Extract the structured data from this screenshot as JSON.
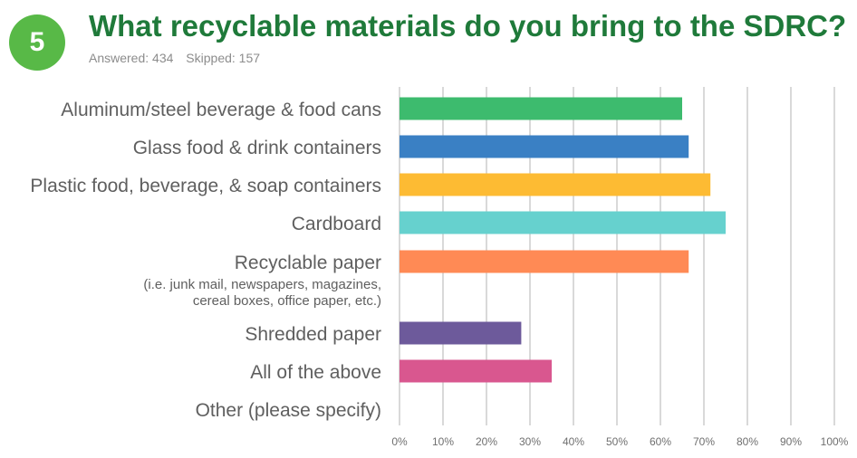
{
  "badge": "5",
  "title": "What recyclable materials do you bring to the SDRC?",
  "answered": "Answered: 434",
  "skipped": "Skipped: 157",
  "colors": {
    "title": "#1f7a3a",
    "badge": "#58b947",
    "grid": "#d9d9d9"
  },
  "chart_data": {
    "type": "bar",
    "orientation": "horizontal",
    "categories": [
      [
        "Aluminum/steel beverage & food cans"
      ],
      [
        "Glass food & drink containers"
      ],
      [
        "Plastic food, beverage, & soap containers"
      ],
      [
        "Cardboard"
      ],
      [
        "Recyclable paper",
        "(i.e. junk mail, newspapers, magazines,",
        "cereal boxes, office paper, etc.)"
      ],
      [
        "Shredded paper"
      ],
      [
        "All of the above"
      ],
      [
        "Other (please specify)"
      ]
    ],
    "values": [
      65,
      66.5,
      71.5,
      75,
      66.5,
      28,
      35,
      0
    ],
    "bar_colors": [
      "#3dbb6e",
      "#3a80c4",
      "#fdbb33",
      "#66d1ce",
      "#ff8a55",
      "#6d5a9b",
      "#d9578f",
      "#999999"
    ],
    "xlim": [
      0,
      100
    ],
    "xticks": [
      "0%",
      "10%",
      "20%",
      "30%",
      "40%",
      "50%",
      "60%",
      "70%",
      "80%",
      "90%",
      "100%"
    ],
    "grid": true
  }
}
